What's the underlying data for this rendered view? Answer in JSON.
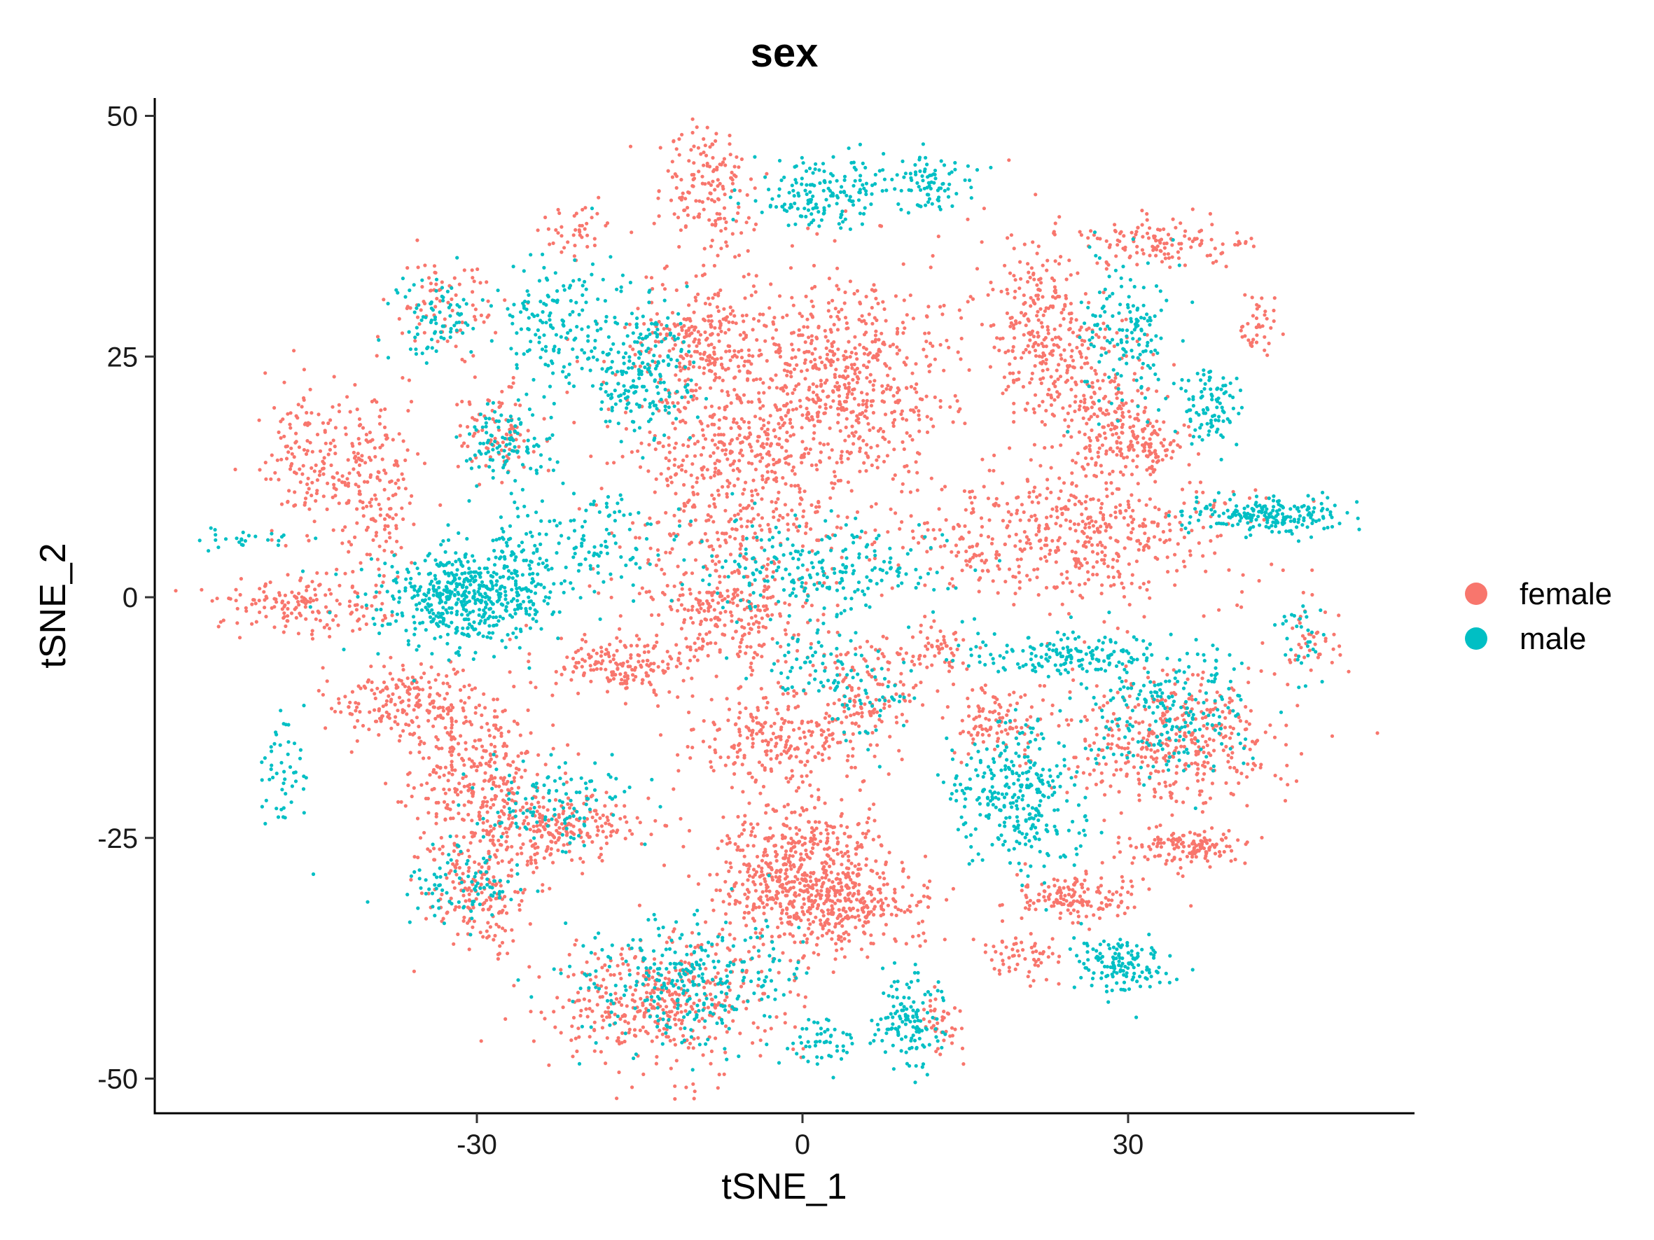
{
  "chart_data": {
    "type": "scatter",
    "title": "sex",
    "xlabel": "tSNE_1",
    "ylabel": "tSNE_2",
    "xlim": [
      -60,
      57
    ],
    "ylim": [
      -53.5,
      52
    ],
    "x_ticks": [
      -30,
      0,
      30
    ],
    "y_ticks": [
      -50,
      -25,
      0,
      25,
      50
    ],
    "x_tick_labels": [
      "-30",
      "0",
      "30"
    ],
    "y_tick_labels": [
      "-50",
      "-25",
      "0",
      "25",
      "50"
    ],
    "grid": false,
    "legend_position": "right",
    "series": [
      {
        "name": "female",
        "color": "#F8766D",
        "clusters": [
          {
            "cx": -6,
            "cy": 15,
            "sx": 6,
            "sy": 7,
            "n": 700
          },
          {
            "cx": 5,
            "cy": 23,
            "sx": 4.5,
            "sy": 5.5,
            "n": 500
          },
          {
            "cx": -9,
            "cy": 27,
            "sx": 3,
            "sy": 3,
            "n": 200
          },
          {
            "cx": -7,
            "cy": -2,
            "sx": 4,
            "sy": 3,
            "n": 260
          },
          {
            "cx": 22,
            "cy": 28,
            "sx": 2.5,
            "sy": 5,
            "n": 280
          },
          {
            "cx": 25,
            "cy": 6,
            "sx": 8,
            "sy": 3.5,
            "n": 520
          },
          {
            "cx": 28,
            "cy": 20,
            "sx": 2.5,
            "sy": 4,
            "n": 180
          },
          {
            "cx": 31,
            "cy": 16,
            "sx": 2,
            "sy": 1.5,
            "n": 120
          },
          {
            "cx": 34,
            "cy": 37,
            "sx": 4,
            "sy": 1.2,
            "n": 130
          },
          {
            "cx": -9,
            "cy": 42,
            "sx": 2.5,
            "sy": 3,
            "n": 160
          },
          {
            "cx": 0,
            "cy": -29,
            "sx": 4,
            "sy": 4,
            "n": 620
          },
          {
            "cx": 5,
            "cy": -32,
            "sx": 4,
            "sy": 2,
            "n": 180
          },
          {
            "cx": -3,
            "cy": -15,
            "sx": 4,
            "sy": 2.5,
            "n": 230
          },
          {
            "cx": 6,
            "cy": -10,
            "sx": 2.5,
            "sy": 3,
            "n": 140
          },
          {
            "cx": 34,
            "cy": -15,
            "sx": 5,
            "sy": 3.5,
            "n": 400
          },
          {
            "cx": 18,
            "cy": -13,
            "sx": 2,
            "sy": 2,
            "n": 100
          },
          {
            "cx": -30,
            "cy": -18,
            "sx": 3,
            "sy": 4,
            "n": 300
          },
          {
            "cx": -36,
            "cy": -11,
            "sx": 3.5,
            "sy": 2,
            "n": 200
          },
          {
            "cx": -46,
            "cy": -1,
            "sx": 4,
            "sy": 1.5,
            "n": 160
          },
          {
            "cx": -45,
            "cy": 14,
            "sx": 2.5,
            "sy": 4,
            "n": 160
          },
          {
            "cx": -39,
            "cy": 12,
            "sx": 2,
            "sy": 5,
            "n": 160
          },
          {
            "cx": -30,
            "cy": -31,
            "sx": 2.5,
            "sy": 3,
            "n": 180
          },
          {
            "cx": -13,
            "cy": -42,
            "sx": 5,
            "sy": 3.5,
            "n": 420
          },
          {
            "cx": -23,
            "cy": -24,
            "sx": 4,
            "sy": 2,
            "n": 240
          },
          {
            "cx": -17,
            "cy": -7,
            "sx": 3,
            "sy": 1.5,
            "n": 160
          },
          {
            "cx": 36,
            "cy": -26,
            "sx": 3,
            "sy": 1,
            "n": 140
          },
          {
            "cx": 25,
            "cy": -31,
            "sx": 3,
            "sy": 1.2,
            "n": 150
          },
          {
            "cx": 20,
            "cy": -37,
            "sx": 2,
            "sy": 1.5,
            "n": 60
          },
          {
            "cx": -28,
            "cy": 17,
            "sx": 2,
            "sy": 2.5,
            "n": 90
          },
          {
            "cx": -33,
            "cy": 30,
            "sx": 2.5,
            "sy": 3,
            "n": 80
          },
          {
            "cx": 42,
            "cy": 28,
            "sx": 1,
            "sy": 1.5,
            "n": 40
          },
          {
            "cx": -21,
            "cy": 38,
            "sx": 1.5,
            "sy": 1.5,
            "n": 40
          },
          {
            "cx": 12,
            "cy": -6,
            "sx": 2,
            "sy": 1.5,
            "n": 60
          },
          {
            "cx": 13,
            "cy": -44,
            "sx": 1,
            "sy": 2,
            "n": 40
          },
          {
            "cx": 47,
            "cy": -4,
            "sx": 1.5,
            "sy": 2,
            "n": 40
          }
        ]
      },
      {
        "name": "male",
        "color": "#00BFC4",
        "clusters": [
          {
            "cx": -31,
            "cy": 0,
            "sx": 4,
            "sy": 2.5,
            "n": 520
          },
          {
            "cx": -15,
            "cy": 24,
            "sx": 2.5,
            "sy": 3.5,
            "n": 230
          },
          {
            "cx": -23,
            "cy": 29,
            "sx": 2.5,
            "sy": 3.5,
            "n": 140
          },
          {
            "cx": 2,
            "cy": 42,
            "sx": 3,
            "sy": 2,
            "n": 170
          },
          {
            "cx": 12,
            "cy": 43,
            "sx": 2,
            "sy": 1.5,
            "n": 80
          },
          {
            "cx": 30,
            "cy": 27,
            "sx": 2.5,
            "sy": 4,
            "n": 150
          },
          {
            "cx": 38,
            "cy": 20,
            "sx": 1.5,
            "sy": 2,
            "n": 90
          },
          {
            "cx": 43,
            "cy": 8.5,
            "sx": 4,
            "sy": 1,
            "n": 200
          },
          {
            "cx": 24,
            "cy": -6,
            "sx": 5,
            "sy": 1,
            "n": 160
          },
          {
            "cx": 20,
            "cy": -21,
            "sx": 3,
            "sy": 4,
            "n": 300
          },
          {
            "cx": 34,
            "cy": -12,
            "sx": 4,
            "sy": 3,
            "n": 220
          },
          {
            "cx": 29,
            "cy": -38,
            "sx": 2,
            "sy": 1.5,
            "n": 140
          },
          {
            "cx": 10,
            "cy": -44,
            "sx": 1.5,
            "sy": 2.5,
            "n": 130
          },
          {
            "cx": 2,
            "cy": -46,
            "sx": 1.5,
            "sy": 1.5,
            "n": 50
          },
          {
            "cx": -11,
            "cy": -40,
            "sx": 5,
            "sy": 3.5,
            "n": 300
          },
          {
            "cx": 2,
            "cy": 3,
            "sx": 6,
            "sy": 2.5,
            "n": 240
          },
          {
            "cx": -27,
            "cy": 16,
            "sx": 2,
            "sy": 2.5,
            "n": 110
          },
          {
            "cx": -34,
            "cy": 29,
            "sx": 2,
            "sy": 2,
            "n": 80
          },
          {
            "cx": -20,
            "cy": 6,
            "sx": 3,
            "sy": 2.5,
            "n": 100
          },
          {
            "cx": -23,
            "cy": -22,
            "sx": 4,
            "sy": 2.5,
            "n": 120
          },
          {
            "cx": -31,
            "cy": -30,
            "sx": 3,
            "sy": 2,
            "n": 90
          },
          {
            "cx": -48,
            "cy": -18,
            "sx": 1,
            "sy": 3,
            "n": 50
          },
          {
            "cx": -51,
            "cy": 6,
            "sx": 2.5,
            "sy": 0.5,
            "n": 25
          },
          {
            "cx": -26,
            "cy": 4,
            "sx": 1.5,
            "sy": 2.5,
            "n": 60
          },
          {
            "cx": 46,
            "cy": -5,
            "sx": 1,
            "sy": 2,
            "n": 30
          },
          {
            "cx": 6,
            "cy": -10,
            "sx": 2,
            "sy": 2.5,
            "n": 60
          },
          {
            "cx": 0,
            "cy": -7,
            "sx": 2.5,
            "sy": 2,
            "n": 50
          }
        ]
      }
    ]
  }
}
